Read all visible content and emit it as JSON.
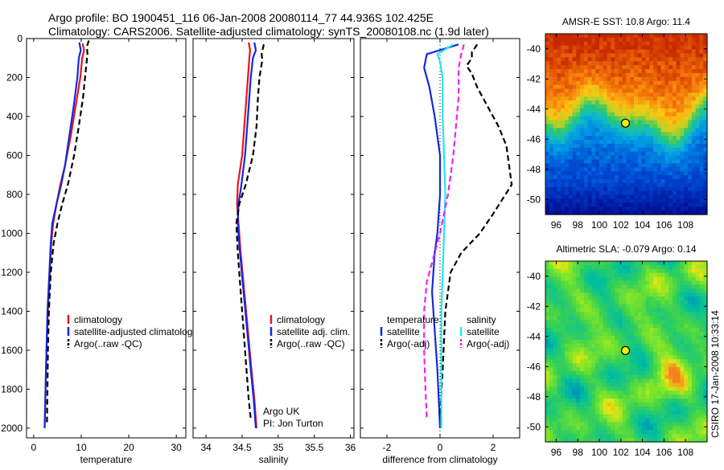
{
  "header": {
    "line1": "Argo profile: BO 1900451_116 06-Jan-2008 20080114_77 44.936S 102.425E",
    "line2": "Climatology: CARS2006. Satellite-adjusted climatology: synTS_20080108.nc (1.9d later)"
  },
  "colors": {
    "climatology": "#e8141e",
    "satellite_adjusted": "#1428dc",
    "argo": "#000000",
    "temperature_satellite": "#1428dc",
    "temperature_argo": "#000000",
    "salinity_satellite": "#22e6ee",
    "salinity_argo": "#ee22ee"
  },
  "chart_data": [
    {
      "type": "line",
      "xlabel": "temperature",
      "xticks": [
        0,
        10,
        20,
        30
      ],
      "yticks": [
        0,
        200,
        400,
        600,
        800,
        1000,
        1200,
        1400,
        1600,
        1800,
        2000
      ],
      "xlim": [
        -1.5,
        32
      ],
      "ylim": [
        0,
        2050
      ],
      "y_reversed": true,
      "legend": [
        "climatology",
        "satellite-adjusted climatology",
        "Argo(..raw -QC)"
      ],
      "series": [
        {
          "name": "climatology",
          "style": "solid",
          "color_key": "climatology",
          "points": [
            [
              10.3,
              25
            ],
            [
              10.6,
              60
            ],
            [
              10.2,
              100
            ],
            [
              9.8,
              200
            ],
            [
              8.8,
              350
            ],
            [
              7.8,
              500
            ],
            [
              6.6,
              650
            ],
            [
              5.6,
              750
            ],
            [
              4.8,
              850
            ],
            [
              4.1,
              950
            ],
            [
              3.7,
              1050
            ],
            [
              3.4,
              1200
            ],
            [
              3.0,
              1400
            ],
            [
              2.7,
              1600
            ],
            [
              2.5,
              1800
            ],
            [
              2.3,
              2000
            ]
          ]
        },
        {
          "name": "satellite-adjusted climatology",
          "style": "solid",
          "color_key": "satellite_adjusted",
          "points": [
            [
              9.6,
              20
            ],
            [
              9.9,
              60
            ],
            [
              9.5,
              100
            ],
            [
              9.2,
              200
            ],
            [
              8.4,
              350
            ],
            [
              7.5,
              500
            ],
            [
              6.6,
              650
            ],
            [
              5.8,
              750
            ],
            [
              4.8,
              850
            ],
            [
              3.9,
              950
            ],
            [
              3.6,
              1050
            ],
            [
              3.3,
              1200
            ],
            [
              2.9,
              1400
            ],
            [
              2.7,
              1600
            ],
            [
              2.5,
              1800
            ],
            [
              2.3,
              2000
            ]
          ]
        },
        {
          "name": "Argo(..raw -QC)",
          "style": "dashed",
          "color_key": "argo",
          "points": [
            [
              11.6,
              10
            ],
            [
              11.2,
              40
            ],
            [
              11.3,
              80
            ],
            [
              10.8,
              200
            ],
            [
              10.4,
              300
            ],
            [
              9.5,
              450
            ],
            [
              8.5,
              600
            ],
            [
              7.2,
              750
            ],
            [
              6.0,
              850
            ],
            [
              5.0,
              950
            ],
            [
              4.2,
              1050
            ],
            [
              3.6,
              1200
            ],
            [
              3.2,
              1400
            ],
            [
              3.0,
              1600
            ],
            [
              2.9,
              1800
            ],
            [
              2.8,
              1970
            ]
          ]
        }
      ]
    },
    {
      "type": "line",
      "xlabel": "salinity",
      "xticks": [
        34,
        34.5,
        35,
        35.5,
        36
      ],
      "xtick_labels": [
        "34",
        "34.5",
        "35",
        "35.5",
        "36"
      ],
      "yticks": [
        0,
        200,
        400,
        600,
        800,
        1000,
        1200,
        1400,
        1600,
        1800,
        2000
      ],
      "xlim": [
        33.82,
        36.05
      ],
      "ylim": [
        0,
        2050
      ],
      "y_reversed": true,
      "legend": [
        "climatology",
        "satellite adj. clim.",
        "Argo(..raw -QC)"
      ],
      "annotations": [
        "Argo UK",
        "PI: Jon Turton"
      ],
      "series": [
        {
          "name": "climatology",
          "style": "solid",
          "color_key": "climatology",
          "points": [
            [
              34.59,
              20
            ],
            [
              34.61,
              60
            ],
            [
              34.6,
              100
            ],
            [
              34.58,
              200
            ],
            [
              34.54,
              400
            ],
            [
              34.5,
              600
            ],
            [
              34.44,
              750
            ],
            [
              34.43,
              850
            ],
            [
              34.45,
              950
            ],
            [
              34.48,
              1100
            ],
            [
              34.53,
              1300
            ],
            [
              34.58,
              1500
            ],
            [
              34.63,
              1700
            ],
            [
              34.67,
              1850
            ],
            [
              34.7,
              2000
            ]
          ]
        },
        {
          "name": "satellite adj. clim.",
          "style": "solid",
          "color_key": "satellite_adjusted",
          "points": [
            [
              34.67,
              20
            ],
            [
              34.69,
              60
            ],
            [
              34.65,
              100
            ],
            [
              34.62,
              200
            ],
            [
              34.58,
              400
            ],
            [
              34.54,
              600
            ],
            [
              34.49,
              750
            ],
            [
              34.45,
              850
            ],
            [
              34.44,
              950
            ],
            [
              34.47,
              1100
            ],
            [
              34.52,
              1300
            ],
            [
              34.57,
              1500
            ],
            [
              34.62,
              1700
            ],
            [
              34.66,
              1850
            ],
            [
              34.69,
              2000
            ]
          ]
        },
        {
          "name": "Argo(..raw -QC)",
          "style": "dashed",
          "color_key": "argo",
          "points": [
            [
              34.8,
              30
            ],
            [
              34.77,
              80
            ],
            [
              34.78,
              110
            ],
            [
              34.74,
              200
            ],
            [
              34.72,
              300
            ],
            [
              34.7,
              450
            ],
            [
              34.65,
              600
            ],
            [
              34.55,
              750
            ],
            [
              34.46,
              850
            ],
            [
              34.42,
              950
            ],
            [
              34.44,
              1100
            ],
            [
              34.48,
              1300
            ],
            [
              34.52,
              1500
            ],
            [
              34.56,
              1700
            ],
            [
              34.59,
              1850
            ],
            [
              34.62,
              1950
            ]
          ]
        }
      ]
    },
    {
      "type": "line",
      "xlabel": "difference from climatology",
      "xticks": [
        -2,
        0,
        2
      ],
      "yticks": [
        0,
        200,
        400,
        600,
        800,
        1000,
        1200,
        1400,
        1600,
        1800,
        2000
      ],
      "xlim": [
        -3.0,
        3.0
      ],
      "ylim": [
        0,
        2050
      ],
      "y_reversed": true,
      "legend": [
        "temperature",
        "satellite",
        "Argo(-adj)",
        "salinity",
        "satellite",
        "Argo(-adj)"
      ],
      "series": [
        {
          "name": "temperature satellite",
          "style": "solid",
          "color_key": "temperature_satellite",
          "points": [
            [
              0.7,
              30
            ],
            [
              -0.5,
              80
            ],
            [
              -0.6,
              150
            ],
            [
              -0.4,
              250
            ],
            [
              -0.2,
              400
            ],
            [
              -0.1,
              500
            ],
            [
              0.0,
              600
            ],
            [
              0.0,
              800
            ],
            [
              -0.1,
              1000
            ],
            [
              -0.2,
              1100
            ],
            [
              -0.3,
              1300
            ],
            [
              -0.2,
              1500
            ],
            [
              -0.1,
              1700
            ],
            [
              -0.05,
              1850
            ],
            [
              0.0,
              2000
            ]
          ]
        },
        {
          "name": "temperature Argo(-adj)",
          "style": "dashed",
          "color_key": "temperature_argo",
          "points": [
            [
              1.4,
              30
            ],
            [
              1.2,
              70
            ],
            [
              1.2,
              100
            ],
            [
              1.0,
              140
            ],
            [
              1.2,
              180
            ],
            [
              1.4,
              250
            ],
            [
              1.8,
              350
            ],
            [
              2.2,
              450
            ],
            [
              2.5,
              550
            ],
            [
              2.6,
              650
            ],
            [
              2.7,
              750
            ],
            [
              2.0,
              900
            ],
            [
              1.5,
              1000
            ],
            [
              0.8,
              1100
            ],
            [
              0.4,
              1200
            ],
            [
              0.2,
              1400
            ],
            [
              0.1,
              1700
            ],
            [
              0.0,
              1950
            ]
          ]
        },
        {
          "name": "salinity satellite",
          "style": "solid",
          "color_key": "salinity_satellite",
          "points": [
            [
              0.5,
              30
            ],
            [
              -0.1,
              80
            ],
            [
              0.0,
              120
            ],
            [
              0.1,
              200
            ],
            [
              0.1,
              400
            ],
            [
              0.15,
              600
            ],
            [
              0.2,
              800
            ],
            [
              0.15,
              1000
            ],
            [
              0.1,
              1200
            ],
            [
              0.05,
              1400
            ],
            [
              0.05,
              1600
            ],
            [
              0.05,
              1800
            ],
            [
              0.05,
              2000
            ]
          ]
        },
        {
          "name": "salinity Argo(-adj)",
          "style": "dashed",
          "color_key": "salinity_argo",
          "points": [
            [
              0.9,
              30
            ],
            [
              0.8,
              80
            ],
            [
              0.7,
              150
            ],
            [
              0.7,
              300
            ],
            [
              0.6,
              450
            ],
            [
              0.5,
              600
            ],
            [
              0.3,
              800
            ],
            [
              0.0,
              1000
            ],
            [
              -0.3,
              1150
            ],
            [
              -0.5,
              1250
            ],
            [
              -0.6,
              1400
            ],
            [
              -0.6,
              1600
            ],
            [
              -0.55,
              1800
            ],
            [
              -0.5,
              1950
            ]
          ]
        }
      ]
    },
    {
      "type": "heatmap",
      "title": "AMSR-E SST: 10.8 Argo: 11.4",
      "xticks": [
        "96",
        "98",
        "100",
        "102",
        "104",
        "106",
        "108"
      ],
      "yticks": [
        "-40",
        "-42",
        "-44",
        "-46",
        "-48",
        "-50"
      ],
      "xlim": [
        95,
        110
      ],
      "ylim": [
        -51,
        -39
      ],
      "marker": {
        "lon": 102.425,
        "lat": -44.936
      }
    },
    {
      "type": "heatmap",
      "title": "Altimetric SLA: -0.079 Argo: 0.14",
      "xticks": [
        "96",
        "98",
        "100",
        "102",
        "104",
        "106",
        "108"
      ],
      "yticks": [
        "-40",
        "-42",
        "-44",
        "-46",
        "-48",
        "-50"
      ],
      "xlim": [
        95,
        110
      ],
      "ylim": [
        -51,
        -39
      ],
      "marker": {
        "lon": 102.425,
        "lat": -44.936
      }
    }
  ],
  "side_note": "CSIRO 17-Jan-2008 10:33:14"
}
